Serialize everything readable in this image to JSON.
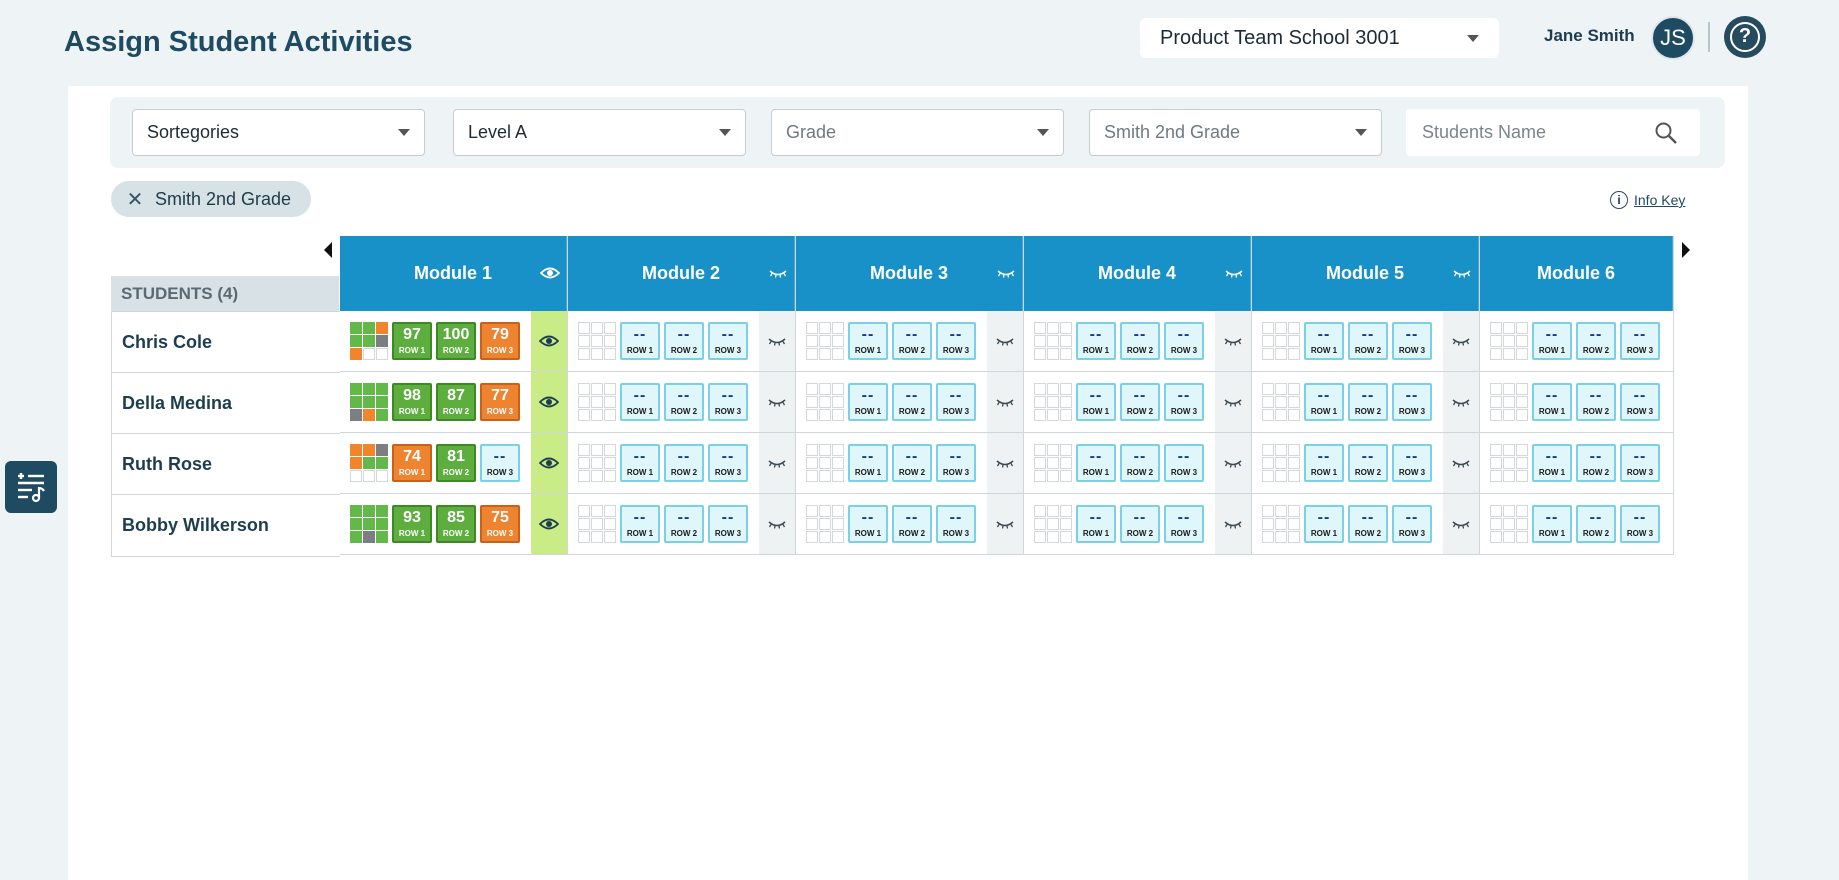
{
  "header": {
    "title": "Assign Student Activities",
    "school": "Product Team School 3001",
    "user_name": "Jane Smith",
    "user_initials": "JS",
    "help_label": "?"
  },
  "filters": {
    "category": "Sortegories",
    "level": "Level A",
    "grade_placeholder": "Grade",
    "class_value": "Smith 2nd Grade",
    "search_placeholder": "Students Name"
  },
  "chip": {
    "label": "Smith 2nd Grade"
  },
  "info_key": "Info Key",
  "students_header": "STUDENTS (4)",
  "modules": [
    "Module 1",
    "Module 2",
    "Module 3",
    "Module 4",
    "Module 5",
    "Module 6"
  ],
  "students": [
    {
      "name": "Chris Cole",
      "m1_grid": [
        "g",
        "g",
        "o",
        "g",
        "g",
        "d",
        "o",
        "e",
        "e"
      ],
      "m1_scores": [
        {
          "value": "97",
          "label": "ROW 1",
          "status": "green"
        },
        {
          "value": "100",
          "label": "ROW 2",
          "status": "green"
        },
        {
          "value": "79",
          "label": "ROW 3",
          "status": "orange"
        }
      ]
    },
    {
      "name": "Della Medina",
      "m1_grid": [
        "g",
        "g",
        "g",
        "g",
        "g",
        "g",
        "d",
        "o",
        "g"
      ],
      "m1_scores": [
        {
          "value": "98",
          "label": "ROW 1",
          "status": "green"
        },
        {
          "value": "87",
          "label": "ROW 2",
          "status": "green"
        },
        {
          "value": "77",
          "label": "ROW 3",
          "status": "orange"
        }
      ]
    },
    {
      "name": "Ruth Rose",
      "m1_grid": [
        "o",
        "o",
        "d",
        "o",
        "g",
        "g",
        "e",
        "e",
        "e"
      ],
      "m1_scores": [
        {
          "value": "74",
          "label": "ROW 1",
          "status": "orange"
        },
        {
          "value": "81",
          "label": "ROW 2",
          "status": "green"
        },
        {
          "value": "--",
          "label": "ROW 3",
          "status": "empty"
        }
      ]
    },
    {
      "name": "Bobby Wilkerson",
      "m1_grid": [
        "g",
        "g",
        "g",
        "g",
        "g",
        "g",
        "g",
        "d",
        "g"
      ],
      "m1_scores": [
        {
          "value": "93",
          "label": "ROW 1",
          "status": "green"
        },
        {
          "value": "85",
          "label": "ROW 2",
          "status": "green"
        },
        {
          "value": "75",
          "label": "ROW 3",
          "status": "orange"
        }
      ]
    }
  ],
  "empty_score": {
    "value": "--",
    "labels": [
      "ROW 1",
      "ROW 2",
      "ROW 3"
    ]
  },
  "colors": {
    "accent": "#1890c8",
    "green": "#5dae3e",
    "orange": "#ee8330",
    "visible_col": "#c9ec86",
    "dark": "#1e4a62"
  },
  "icons": {
    "module1_visibility": "eye-icon",
    "other_visibility": "eye-closed-icon",
    "search": "search-icon",
    "close": "close-icon",
    "info": "info-icon",
    "side_tool": "sliders-music-icon"
  }
}
